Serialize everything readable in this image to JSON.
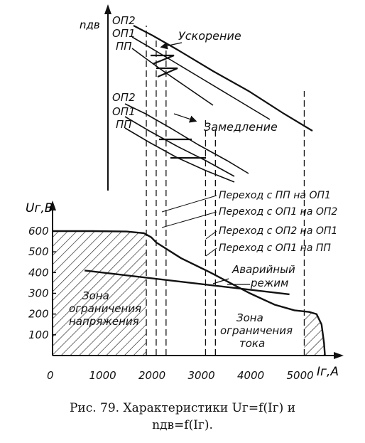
{
  "caption": {
    "line1": "Рис. 79. Характеристики Uг=f(Iг) и",
    "line2": "nдв=f(Iг)."
  },
  "chart_data": [
    {
      "type": "line",
      "title": "",
      "xlabel": "Iг,А",
      "ylabel": "Uг,В",
      "x_ticks": [
        0,
        1000,
        2000,
        3000,
        4000,
        5000
      ],
      "x_tick_labels": [
        "0",
        "1000",
        "2000",
        "3000",
        "4000",
        "5000"
      ],
      "y_ticks": [
        100,
        200,
        300,
        400,
        500,
        600
      ],
      "y_tick_labels": [
        "100",
        "200",
        "300",
        "400",
        "500",
        "600"
      ],
      "xlim": [
        0,
        6000
      ],
      "ylim": [
        0,
        650
      ],
      "grid": false,
      "series": [
        {
          "name": "",
          "x": [
            0,
            800,
            1500,
            1850,
            2000,
            2100,
            2600,
            3200,
            3600,
            4000,
            4500,
            4900,
            5200,
            5350,
            5450,
            5500,
            5520
          ],
          "y": [
            600,
            600,
            598,
            590,
            570,
            545,
            470,
            400,
            350,
            300,
            245,
            218,
            210,
            200,
            150,
            60,
            0
          ]
        },
        {
          "name": "",
          "x": [
            650,
            4800
          ],
          "y": [
            410,
            295
          ]
        }
      ],
      "vertical_dashed_lines_x": [
        1900,
        2100,
        2300,
        3100,
        3300,
        5100
      ],
      "annotations": [
        {
          "text": "Зона ограничения напряжения",
          "x": 1200,
          "y": 280
        },
        {
          "text": "Зона ограничения тока",
          "x": 4750,
          "y": 150
        },
        {
          "text": "Аварийный режим",
          "x": 4400,
          "y": 370
        },
        {
          "text": "Переход с ПП на ОП1",
          "x": 3600,
          "y": 1050
        },
        {
          "text": "Переход с ОП1 на ОП2",
          "x": 3600,
          "y": 970
        },
        {
          "text": "Переход с ОП2 на ОП1",
          "x": 3600,
          "y": 890
        },
        {
          "text": "Переход с ОП1 на ПП",
          "x": 3600,
          "y": 810
        }
      ],
      "hatched_regions": [
        "Зона ограничения напряжения",
        "Зона ограничения тока"
      ]
    },
    {
      "type": "line",
      "title": "",
      "xlabel": "",
      "ylabel": "nдв",
      "groups": [
        {
          "name": "Ускорение",
          "curves": [
            "ОП2",
            "ОП1",
            "ПП"
          ]
        },
        {
          "name": "Замедление",
          "curves": [
            "ОП2",
            "ОП1",
            "ПП"
          ]
        }
      ],
      "labels": [
        "ОП2",
        "ОП1",
        "ПП",
        "ОП2",
        "ОП1",
        "ПП",
        "Ускорение",
        "Замедление"
      ]
    }
  ]
}
